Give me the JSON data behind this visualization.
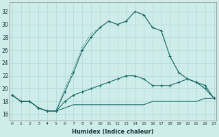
{
  "xlabel": "Humidex (Indice chaleur)",
  "background_color": "#ceecea",
  "grid_color": "#b0d8d5",
  "line_color": "#1a6b65",
  "x_ticks": [
    0,
    1,
    2,
    3,
    4,
    5,
    6,
    7,
    8,
    9,
    10,
    11,
    12,
    13,
    14,
    15,
    16,
    17,
    18,
    19,
    20,
    21,
    22,
    23
  ],
  "y_ticks": [
    16,
    18,
    20,
    22,
    24,
    26,
    28,
    30,
    32
  ],
  "ylim": [
    15.0,
    33.5
  ],
  "xlim": [
    -0.3,
    23.3
  ],
  "series": [
    {
      "x": [
        0,
        1,
        2,
        3,
        4,
        5,
        6,
        7,
        8,
        9,
        10,
        11,
        12,
        13,
        14,
        15,
        16,
        17,
        18,
        19,
        20,
        21,
        22,
        23
      ],
      "y": [
        19.0,
        18.0,
        18.0,
        17.0,
        16.5,
        16.5,
        19.5,
        22.5,
        26.0,
        28.0,
        29.5,
        30.5,
        30.0,
        30.5,
        32.0,
        31.5,
        29.5,
        29.0,
        25.0,
        22.5,
        21.5,
        21.0,
        20.0,
        18.5
      ],
      "linestyle": "solid",
      "marker": "+"
    },
    {
      "x": [
        0,
        1,
        2,
        3,
        4,
        5,
        6,
        7,
        8,
        9,
        10,
        11,
        12,
        13,
        14,
        15,
        16,
        17,
        18,
        19,
        20,
        21,
        22,
        23
      ],
      "y": [
        19.0,
        18.0,
        18.0,
        17.0,
        16.5,
        16.5,
        20.0,
        23.0,
        26.5,
        28.5,
        29.5,
        30.5,
        30.0,
        30.5,
        32.0,
        31.5,
        29.5,
        29.0,
        25.0,
        22.5,
        21.5,
        21.0,
        20.0,
        18.5
      ],
      "linestyle": "dotted",
      "marker": null
    },
    {
      "x": [
        0,
        1,
        2,
        3,
        4,
        5,
        6,
        7,
        8,
        9,
        10,
        11,
        12,
        13,
        14,
        15,
        16,
        17,
        18,
        19,
        20,
        21,
        22,
        23
      ],
      "y": [
        19.0,
        18.0,
        18.0,
        17.0,
        16.5,
        16.5,
        18.0,
        19.0,
        19.5,
        20.0,
        20.5,
        21.0,
        21.5,
        22.0,
        22.0,
        21.5,
        20.5,
        20.5,
        20.5,
        21.0,
        21.5,
        21.0,
        20.5,
        18.5
      ],
      "linestyle": "solid",
      "marker": "+"
    },
    {
      "x": [
        0,
        1,
        2,
        3,
        4,
        5,
        6,
        7,
        8,
        9,
        10,
        11,
        12,
        13,
        14,
        15,
        16,
        17,
        18,
        19,
        20,
        21,
        22,
        23
      ],
      "y": [
        19.0,
        18.0,
        18.0,
        17.0,
        16.5,
        16.5,
        17.0,
        17.5,
        17.5,
        17.5,
        17.5,
        17.5,
        17.5,
        17.5,
        17.5,
        17.5,
        18.0,
        18.0,
        18.0,
        18.0,
        18.0,
        18.0,
        18.5,
        18.5
      ],
      "linestyle": "solid",
      "marker": null
    }
  ]
}
